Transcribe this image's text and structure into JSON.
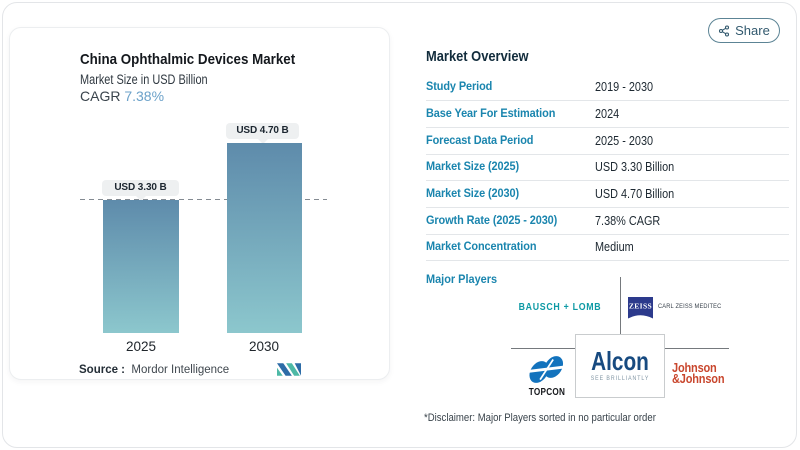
{
  "chart": {
    "title": "China Ophthalmic Devices Market",
    "subtitle": "Market Size in USD Billion",
    "cagr_label": "CAGR",
    "cagr_value": "7.38%",
    "bars": [
      {
        "year": "2025",
        "value_label": "USD 3.30 B"
      },
      {
        "year": "2030",
        "value_label": "USD 4.70 B"
      }
    ],
    "source_label": "Source :",
    "source_value": "Mordor Intelligence"
  },
  "chart_data": {
    "type": "bar",
    "categories": [
      "2025",
      "2030"
    ],
    "values": [
      3.3,
      4.7
    ],
    "value_labels": [
      "USD 3.30 B",
      "USD 4.70 B"
    ],
    "title": "China Ophthalmic Devices Market",
    "ylabel": "Market Size in USD Billion",
    "cagr": "7.38%",
    "ylim": [
      0,
      4.7
    ],
    "grid": false,
    "dashed_reference_value": 3.3,
    "bar_gradient": [
      "#5e8bab",
      "#8cc7cd"
    ]
  },
  "share": {
    "label": "Share"
  },
  "overview": {
    "heading": "Market Overview",
    "rows": [
      {
        "label": "Study Period",
        "value": "2019 - 2030"
      },
      {
        "label": "Base Year For Estimation",
        "value": "2024"
      },
      {
        "label": "Forecast Data Period",
        "value": "2025 - 2030"
      },
      {
        "label": "Market Size (2025)",
        "value": "USD 3.30 Billion"
      },
      {
        "label": "Market Size (2030)",
        "value": "USD 4.70 Billion"
      },
      {
        "label": "Growth Rate (2025 - 2030)",
        "value": "7.38% CAGR"
      },
      {
        "label": "Market Concentration",
        "value": "Medium"
      }
    ],
    "major_players_label": "Major Players",
    "players": {
      "bausch_lomb": "BAUSCH + LOMB",
      "zeiss_mark": "ZEISS",
      "zeiss_text": "CARL ZEISS MEDITEC",
      "topcon": "TOPCON",
      "alcon": "Alcon",
      "alcon_tagline": "SEE BRILLIANTLY",
      "jnj_line1": "Johnson",
      "jnj_line2": "&Johnson"
    },
    "disclaimer": "*Disclaimer: Major Players sorted in no particular order"
  },
  "icons": {
    "share": "share-nodes-icon",
    "mordor_logo": "mordor-intelligence-mark",
    "topcon_mark": "topcon-swoosh-mark",
    "zeiss_badge": "zeiss-blue-flag"
  },
  "colors": {
    "accent_label": "#1a85ae",
    "bar_top": "#5e8bab",
    "bar_bottom": "#8cc7cd",
    "bausch_teal": "#0e9aa5",
    "zeiss_blue": "#2c3a8c",
    "topcon_blue": "#1373bd",
    "alcon_blue": "#174a80",
    "jnj_red": "#c9472e",
    "mordor_blue": "#2d6ca7",
    "mordor_teal": "#4db9a6"
  }
}
